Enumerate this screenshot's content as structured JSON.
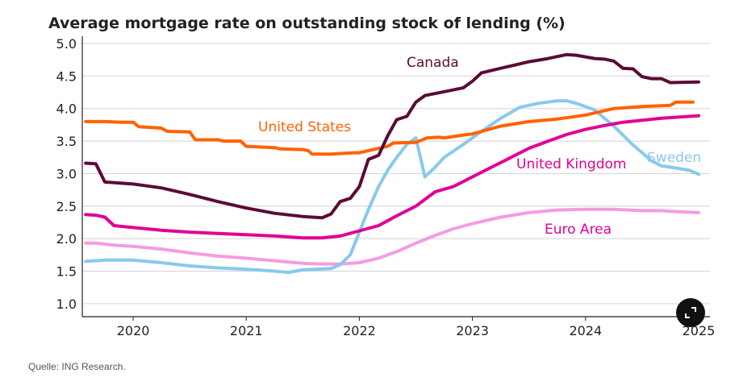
{
  "chart_data": {
    "type": "line",
    "title": "Average mortgage rate on outstanding stock of lending (%)",
    "xlabel": "",
    "ylabel": "",
    "xlim": [
      2019.55,
      2025.1
    ],
    "ylim": [
      0.8,
      5.05
    ],
    "y_ticks": [
      1.0,
      1.5,
      2.0,
      2.5,
      3.0,
      3.5,
      4.0,
      4.5,
      5.0
    ],
    "y_tick_labels": [
      "1.0",
      "1.5",
      "2.0",
      "2.5",
      "3.0",
      "3.5",
      "4.0",
      "4.5",
      "5.0"
    ],
    "x_ticks": [
      2020,
      2021,
      2022,
      2023,
      2024,
      2025
    ],
    "x_tick_labels": [
      "2020",
      "2021",
      "2022",
      "2023",
      "2024",
      "2025"
    ],
    "grid": true,
    "legend": "inline labels",
    "series": [
      {
        "name": "Canada",
        "color": "#5c0b35",
        "x": [
          2019.58,
          2019.67,
          2019.75,
          2020.0,
          2020.25,
          2020.5,
          2020.75,
          2021.0,
          2021.25,
          2021.5,
          2021.67,
          2021.75,
          2021.83,
          2021.92,
          2022.0,
          2022.08,
          2022.17,
          2022.25,
          2022.33,
          2022.42,
          2022.5,
          2022.58,
          2022.75,
          2022.92,
          2023.0,
          2023.08,
          2023.25,
          2023.5,
          2023.67,
          2023.83,
          2023.92,
          2024.08,
          2024.17,
          2024.25,
          2024.33,
          2024.42,
          2024.5,
          2024.58,
          2024.67,
          2024.75,
          2025.0
        ],
        "values": [
          3.16,
          3.15,
          2.87,
          2.84,
          2.78,
          2.68,
          2.57,
          2.47,
          2.39,
          2.34,
          2.32,
          2.38,
          2.57,
          2.62,
          2.8,
          3.22,
          3.28,
          3.58,
          3.83,
          3.88,
          4.1,
          4.2,
          4.26,
          4.32,
          4.42,
          4.55,
          4.62,
          4.72,
          4.77,
          4.83,
          4.82,
          4.77,
          4.76,
          4.73,
          4.62,
          4.61,
          4.49,
          4.46,
          4.46,
          4.4,
          4.41
        ]
      },
      {
        "name": "United States",
        "color": "#ff6200",
        "x": [
          2019.58,
          2019.75,
          2019.9,
          2020.0,
          2020.05,
          2020.25,
          2020.3,
          2020.5,
          2020.55,
          2020.75,
          2020.8,
          2020.95,
          2021.0,
          2021.25,
          2021.3,
          2021.5,
          2021.55,
          2021.58,
          2021.75,
          2021.95,
          2022.0,
          2022.25,
          2022.3,
          2022.5,
          2022.6,
          2022.7,
          2022.75,
          2022.95,
          2023.0,
          2023.25,
          2023.5,
          2023.75,
          2024.0,
          2024.25,
          2024.5,
          2024.75,
          2024.8,
          2024.95
        ],
        "values": [
          3.8,
          3.8,
          3.79,
          3.79,
          3.72,
          3.7,
          3.65,
          3.64,
          3.52,
          3.52,
          3.5,
          3.5,
          3.42,
          3.4,
          3.38,
          3.37,
          3.35,
          3.3,
          3.3,
          3.32,
          3.32,
          3.42,
          3.47,
          3.48,
          3.55,
          3.56,
          3.55,
          3.6,
          3.61,
          3.73,
          3.8,
          3.84,
          3.9,
          4.0,
          4.03,
          4.05,
          4.1,
          4.1
        ]
      },
      {
        "name": "Sweden",
        "color": "#89c9ee",
        "x": [
          2019.58,
          2019.75,
          2020.0,
          2020.25,
          2020.5,
          2020.75,
          2021.0,
          2021.25,
          2021.37,
          2021.5,
          2021.75,
          2021.83,
          2021.92,
          2022.0,
          2022.08,
          2022.17,
          2022.25,
          2022.33,
          2022.42,
          2022.5,
          2022.58,
          2022.67,
          2022.75,
          2022.92,
          2023.08,
          2023.25,
          2023.42,
          2023.58,
          2023.75,
          2023.83,
          2023.92,
          2024.08,
          2024.25,
          2024.42,
          2024.58,
          2024.67,
          2024.75,
          2024.92,
          2025.0
        ],
        "values": [
          1.65,
          1.67,
          1.67,
          1.63,
          1.58,
          1.55,
          1.53,
          1.5,
          1.48,
          1.52,
          1.54,
          1.6,
          1.75,
          2.1,
          2.45,
          2.8,
          3.05,
          3.25,
          3.45,
          3.55,
          2.95,
          3.1,
          3.25,
          3.45,
          3.65,
          3.85,
          4.02,
          4.08,
          4.12,
          4.12,
          4.08,
          3.98,
          3.73,
          3.44,
          3.2,
          3.12,
          3.1,
          3.05,
          2.99
        ]
      },
      {
        "name": "United Kingdom",
        "color": "#e10096",
        "x": [
          2019.58,
          2019.67,
          2019.75,
          2019.83,
          2020.0,
          2020.25,
          2020.5,
          2020.75,
          2021.0,
          2021.25,
          2021.5,
          2021.67,
          2021.83,
          2022.0,
          2022.17,
          2022.33,
          2022.5,
          2022.67,
          2022.83,
          2023.0,
          2023.17,
          2023.33,
          2023.5,
          2023.67,
          2023.83,
          2024.0,
          2024.17,
          2024.33,
          2024.5,
          2024.67,
          2024.83,
          2025.0
        ],
        "values": [
          2.37,
          2.36,
          2.33,
          2.2,
          2.17,
          2.13,
          2.1,
          2.08,
          2.06,
          2.04,
          2.01,
          2.01,
          2.04,
          2.12,
          2.2,
          2.35,
          2.5,
          2.72,
          2.8,
          2.95,
          3.1,
          3.24,
          3.39,
          3.5,
          3.6,
          3.68,
          3.74,
          3.79,
          3.82,
          3.85,
          3.87,
          3.89
        ]
      },
      {
        "name": "Euro Area",
        "color": "#f49be3",
        "x": [
          2019.58,
          2019.67,
          2019.83,
          2020.0,
          2020.25,
          2020.5,
          2020.75,
          2021.0,
          2021.25,
          2021.5,
          2021.67,
          2021.83,
          2022.0,
          2022.17,
          2022.33,
          2022.5,
          2022.67,
          2022.83,
          2023.0,
          2023.25,
          2023.5,
          2023.75,
          2024.0,
          2024.25,
          2024.5,
          2024.67,
          2024.75,
          2025.0
        ],
        "values": [
          1.93,
          1.93,
          1.9,
          1.88,
          1.84,
          1.78,
          1.73,
          1.7,
          1.66,
          1.62,
          1.61,
          1.61,
          1.63,
          1.7,
          1.8,
          1.93,
          2.05,
          2.15,
          2.23,
          2.33,
          2.4,
          2.44,
          2.45,
          2.45,
          2.43,
          2.43,
          2.42,
          2.4
        ]
      }
    ]
  },
  "labels": {
    "canada": "Canada",
    "united_states": "United States",
    "sweden": "Sweden",
    "united_kingdom": "United Kingdom",
    "euro_area": "Euro Area"
  },
  "source": "Quelle: ING Research.",
  "expand_icon": "expand-icon"
}
